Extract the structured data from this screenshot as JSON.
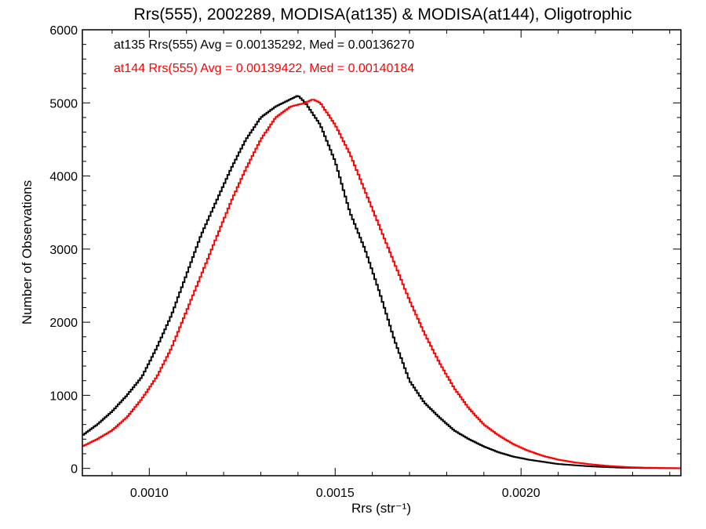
{
  "chart_data": {
    "type": "line",
    "style": "histogram-step",
    "title": "Rrs(555), 2002289, MODISA(at135) & MODISA(at144), Oligotrophic",
    "xlabel": "Rrs (str⁻¹)",
    "ylabel": "Number of Observations",
    "xlim": [
      0.00082,
      0.00243
    ],
    "ylim": [
      -100,
      6000
    ],
    "xticks": [
      {
        "value": 0.001,
        "label": "0.0010"
      },
      {
        "value": 0.0015,
        "label": "0.0015"
      },
      {
        "value": 0.002,
        "label": "0.0020"
      }
    ],
    "yticks": [
      {
        "value": 0,
        "label": "0"
      },
      {
        "value": 1000,
        "label": "1000"
      },
      {
        "value": 2000,
        "label": "2000"
      },
      {
        "value": 3000,
        "label": "3000"
      },
      {
        "value": 4000,
        "label": "4000"
      },
      {
        "value": 5000,
        "label": "5000"
      },
      {
        "value": 6000,
        "label": "6000"
      }
    ],
    "grid": false,
    "legend_position": "top-left",
    "series": [
      {
        "name": "at135 Rrs(555) Avg = 0.00135292, Med = 0.00136270",
        "color": "#000000",
        "x": [
          0.00082,
          0.00086,
          0.0009,
          0.00094,
          0.00098,
          0.00102,
          0.00106,
          0.0011,
          0.00114,
          0.00118,
          0.00122,
          0.00126,
          0.0013,
          0.00134,
          0.00138,
          0.0014,
          0.00142,
          0.00146,
          0.0015,
          0.00154,
          0.00158,
          0.00162,
          0.00166,
          0.0017,
          0.00174,
          0.00178,
          0.00182,
          0.00186,
          0.0019,
          0.00194,
          0.00198,
          0.00202,
          0.00206,
          0.0021,
          0.00214,
          0.00218,
          0.00222,
          0.00226,
          0.0023,
          0.00234,
          0.00238,
          0.00243
        ],
        "y": [
          450,
          600,
          780,
          1000,
          1250,
          1650,
          2100,
          2650,
          3200,
          3650,
          4100,
          4500,
          4800,
          4950,
          5050,
          5100,
          5000,
          4700,
          4200,
          3500,
          3000,
          2400,
          1750,
          1200,
          900,
          700,
          520,
          400,
          300,
          220,
          160,
          120,
          90,
          60,
          45,
          30,
          20,
          12,
          8,
          5,
          3,
          2
        ]
      },
      {
        "name": "at144 Rrs(555) Avg = 0.00139422, Med = 0.00140184",
        "color": "#ff0000",
        "x": [
          0.00082,
          0.00086,
          0.0009,
          0.00094,
          0.00098,
          0.00102,
          0.00106,
          0.0011,
          0.00114,
          0.00118,
          0.00122,
          0.00126,
          0.0013,
          0.00134,
          0.00138,
          0.00142,
          0.00144,
          0.00146,
          0.0015,
          0.00154,
          0.00158,
          0.00162,
          0.00166,
          0.0017,
          0.00174,
          0.00178,
          0.00182,
          0.00186,
          0.0019,
          0.00194,
          0.00198,
          0.00202,
          0.00206,
          0.0021,
          0.00214,
          0.00218,
          0.00222,
          0.00226,
          0.0023,
          0.00234,
          0.00238,
          0.00243
        ],
        "y": [
          300,
          400,
          520,
          700,
          950,
          1250,
          1650,
          2150,
          2650,
          3150,
          3650,
          4100,
          4500,
          4800,
          4950,
          5000,
          5050,
          5000,
          4700,
          4300,
          3800,
          3300,
          2800,
          2300,
          1850,
          1450,
          1100,
          820,
          600,
          450,
          330,
          240,
          170,
          120,
          85,
          60,
          40,
          25,
          15,
          10,
          6,
          3
        ]
      }
    ]
  }
}
